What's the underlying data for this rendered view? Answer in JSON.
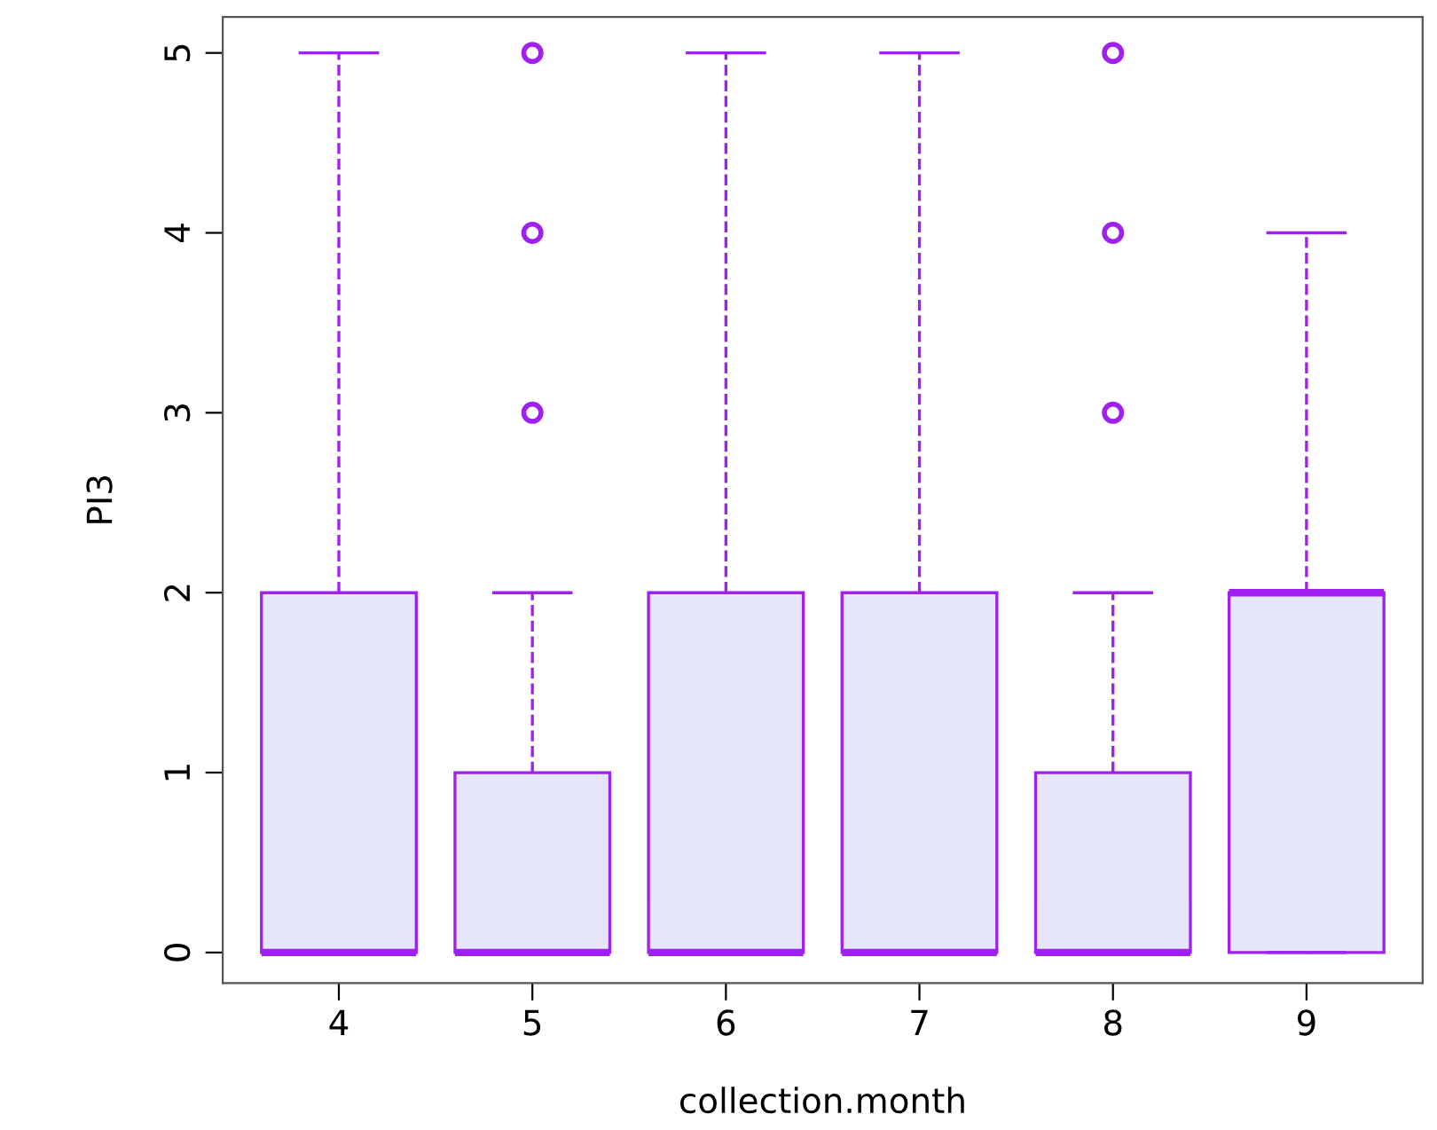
{
  "chart_data": {
    "type": "box",
    "xlabel": "collection.month",
    "ylabel": "PI3",
    "categories": [
      "4",
      "5",
      "6",
      "7",
      "8",
      "9"
    ],
    "series": [
      {
        "color": "#a020f0",
        "boxes": [
          {
            "low": 0,
            "q1": 0,
            "median": 0,
            "q3": 2,
            "high": 5
          },
          {
            "low": 0,
            "q1": 0,
            "median": 0,
            "q3": 1,
            "high": 2,
            "outliers": [
              3,
              4,
              5
            ]
          },
          {
            "low": 0,
            "q1": 0,
            "median": 0,
            "q3": 2,
            "high": 5
          },
          {
            "low": 0,
            "q1": 0,
            "median": 0,
            "q3": 2,
            "high": 5
          },
          {
            "low": 0,
            "q1": 0,
            "median": 0,
            "q3": 1,
            "high": 2,
            "outliers": [
              3,
              4,
              5
            ]
          },
          {
            "low": 0,
            "q1": 0,
            "median": 2,
            "q3": 2,
            "high": 4
          }
        ]
      }
    ],
    "ylim": [
      -0.17,
      5.2
    ],
    "yticks": [
      0,
      1,
      2,
      3,
      4,
      5
    ],
    "grid": false,
    "marker": "circle",
    "line_style": "dashed"
  }
}
